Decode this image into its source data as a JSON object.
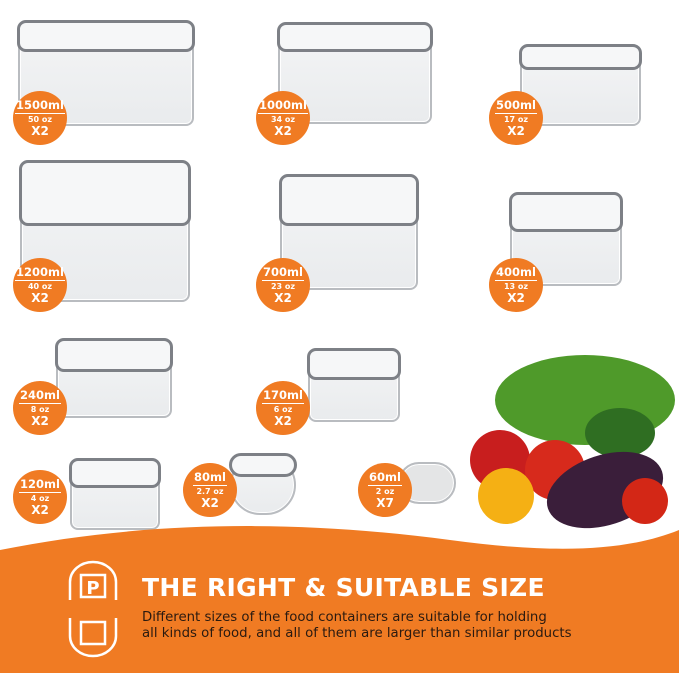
{
  "containers": [
    {
      "ml": "1500ml",
      "oz": "50 oz",
      "qty": "X2"
    },
    {
      "ml": "1000ml",
      "oz": "34 oz",
      "qty": "X2"
    },
    {
      "ml": "500ml",
      "oz": "17 oz",
      "qty": "X2"
    },
    {
      "ml": "1200ml",
      "oz": "40 oz",
      "qty": "X2"
    },
    {
      "ml": "700ml",
      "oz": "23 oz",
      "qty": "X2"
    },
    {
      "ml": "400ml",
      "oz": "13 oz",
      "qty": "X2"
    },
    {
      "ml": "240ml",
      "oz": "8 oz",
      "qty": "X2"
    },
    {
      "ml": "170ml",
      "oz": "6 oz",
      "qty": "X2"
    },
    {
      "ml": "120ml",
      "oz": "4 oz",
      "qty": "X2"
    },
    {
      "ml": "80ml",
      "oz": "2.7 oz",
      "qty": "X2"
    },
    {
      "ml": "60ml",
      "oz": "2 oz",
      "qty": "X7"
    }
  ],
  "banner": {
    "title": "THE RIGHT & SUITABLE SIZE",
    "description_line1": "Different sizes of the food containers are suitable for holding",
    "description_line2": "all kinds of food, and all of them are larger than similar products"
  },
  "colors": {
    "accent": "#f07b23",
    "text_dark": "#2a1a10"
  }
}
